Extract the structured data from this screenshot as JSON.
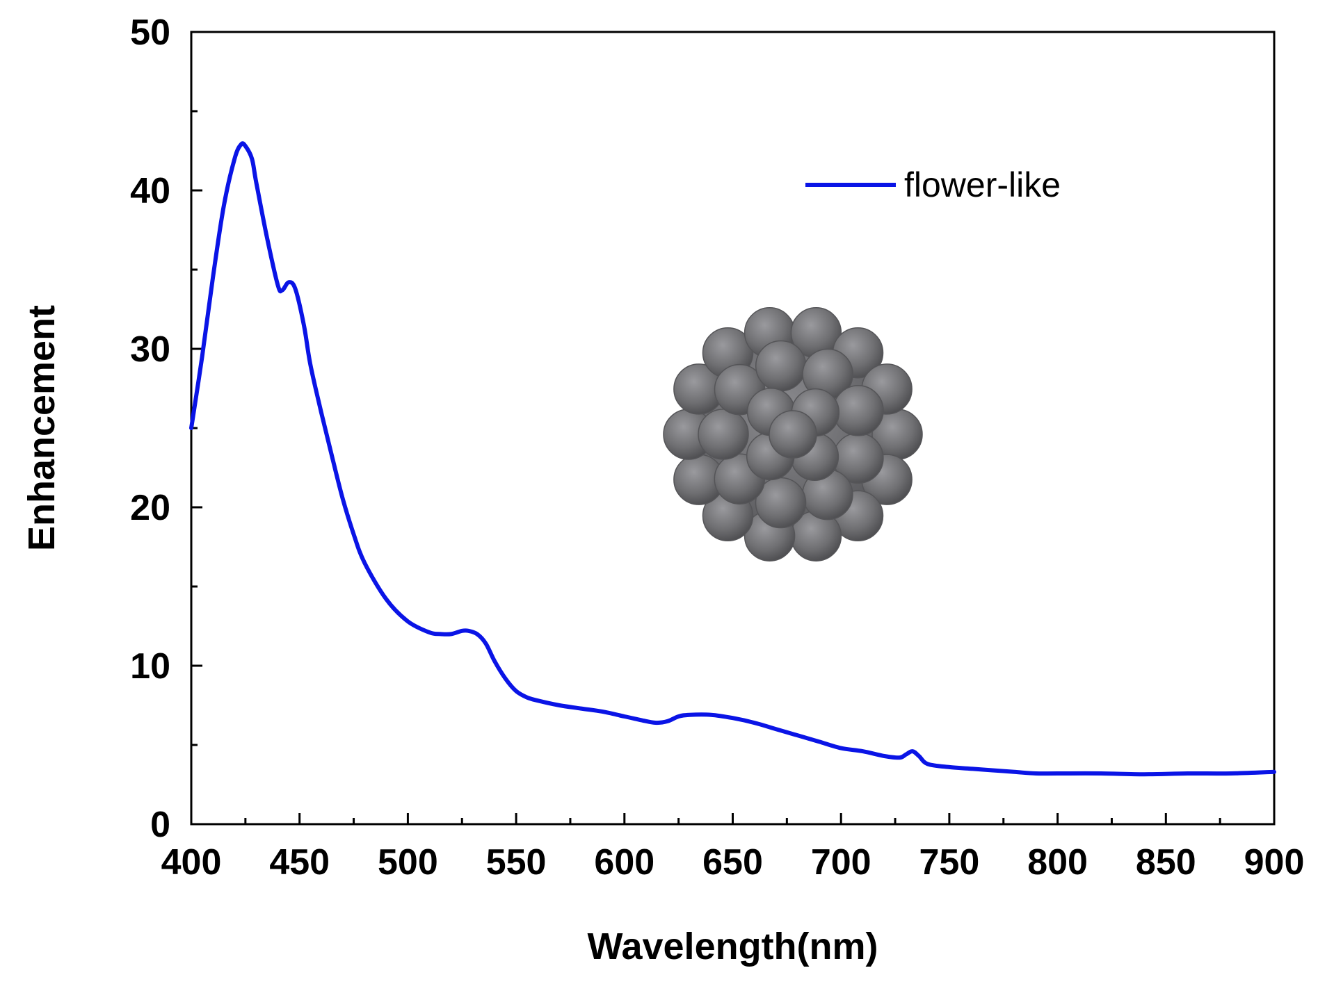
{
  "chart_data": {
    "type": "line",
    "title": "",
    "xlabel": "Wavelength(nm)",
    "ylabel": "Enhancement",
    "xlim": [
      400,
      900
    ],
    "ylim": [
      0,
      50
    ],
    "grid": false,
    "legend_position": "top-right",
    "x_ticks": [
      400,
      450,
      500,
      550,
      600,
      650,
      700,
      750,
      800,
      850,
      900
    ],
    "y_ticks": [
      0,
      10,
      20,
      30,
      40,
      50
    ],
    "series": [
      {
        "name": "flower-like",
        "color": "#0a14e6",
        "x": [
          400,
          405,
          410,
          415,
          420,
          423,
          425,
          428,
          430,
          435,
          440,
          442,
          445,
          448,
          452,
          455,
          460,
          465,
          470,
          475,
          480,
          490,
          500,
          510,
          515,
          520,
          525,
          528,
          532,
          536,
          540,
          545,
          550,
          555,
          560,
          570,
          580,
          590,
          600,
          610,
          615,
          620,
          625,
          630,
          640,
          650,
          660,
          670,
          680,
          690,
          700,
          710,
          720,
          727,
          730,
          733,
          736,
          740,
          750,
          760,
          770,
          780,
          790,
          800,
          820,
          840,
          860,
          880,
          900
        ],
        "y": [
          25.0,
          29.5,
          34.5,
          39.0,
          42.0,
          42.9,
          42.8,
          42.0,
          40.5,
          37.0,
          34.0,
          33.7,
          34.2,
          33.8,
          31.5,
          29.0,
          26.0,
          23.2,
          20.5,
          18.3,
          16.5,
          14.2,
          12.8,
          12.1,
          12.0,
          12.0,
          12.2,
          12.2,
          12.0,
          11.4,
          10.3,
          9.2,
          8.4,
          8.0,
          7.8,
          7.5,
          7.3,
          7.1,
          6.8,
          6.5,
          6.4,
          6.5,
          6.8,
          6.9,
          6.9,
          6.7,
          6.4,
          6.0,
          5.6,
          5.2,
          4.8,
          4.6,
          4.3,
          4.2,
          4.4,
          4.6,
          4.3,
          3.8,
          3.6,
          3.5,
          3.4,
          3.3,
          3.2,
          3.2,
          3.2,
          3.15,
          3.2,
          3.2,
          3.3
        ]
      }
    ]
  },
  "inset": {
    "description_icon": "flower-like-nanoparticle-icon",
    "particle_color": "#6f6f72"
  }
}
